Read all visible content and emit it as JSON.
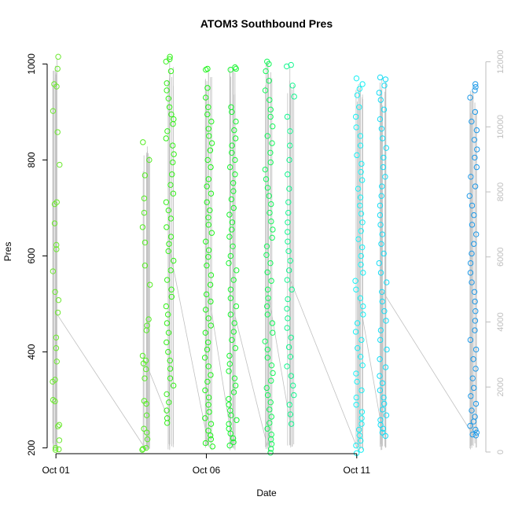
{
  "chart_data": {
    "type": "scatter",
    "title": "ATOM3 Southbound Pres",
    "xlabel": "Date",
    "ylabel": "Pres",
    "xlim": [
      "2014-09-30T17:00",
      "2014-10-15T07:00"
    ],
    "ylim": [
      188,
      1035
    ],
    "y2lim": [
      -50,
      12450
    ],
    "x_ticks": [
      {
        "value": "2014-10-01T00:00",
        "label": "Oct 01"
      },
      {
        "value": "2014-10-06T00:00",
        "label": "Oct 06"
      },
      {
        "value": "2014-10-11T00:00",
        "label": "Oct 11"
      }
    ],
    "y_ticks": [
      200,
      400,
      600,
      800,
      1000
    ],
    "y2_ticks": [
      0,
      2000,
      4000,
      6000,
      8000,
      10000,
      12000
    ],
    "grid": false,
    "legend": "none",
    "colors": {
      "axis": "#000000",
      "right_axis": "#bebebe",
      "background_line": "#c0c0c0",
      "profile_gradient": [
        "#66ee33",
        "#00ff00",
        "#00ffaa",
        "#00e8ff",
        "#1e8ce6"
      ]
    },
    "series": [
      {
        "values": [
          {
            "t": "2014-10-01T00:00",
            "pres": [
              1015,
              990,
              958,
              953,
              902,
              858,
              790,
              712,
              708,
              668,
              623,
              614,
              568,
              525,
              508,
              482,
              430,
              408,
              380,
              342,
              338,
              300,
              297,
              248,
              245,
              216,
              200,
              197,
              196
            ],
            "color": "#6be82e"
          },
          {
            "t": "2014-10-04T00:00",
            "pres": [
              837,
              800,
              768,
              720,
              690,
              660,
              628,
              580,
              540,
              468,
              455,
              445,
              392,
              382,
              376,
              364,
              345,
              298,
              292,
              268,
              240,
              232,
              218,
              200,
              198,
              196
            ],
            "color": "#55ec24"
          },
          {
            "t": "2014-10-04T19:00",
            "pres": [
              1015,
              1010,
              1005,
              985,
              960,
              945,
              928,
              910,
              895,
              885,
              875,
              860,
              845,
              830,
              812,
              795,
              770,
              748,
              730,
              712,
              695,
              678,
              660,
              640,
              625,
              610,
              590,
              570,
              550,
              530,
              515,
              495,
              478,
              460,
              440,
              420,
              400,
              382,
              365,
              345,
              330,
              312,
              295,
              278,
              262,
              252
            ],
            "color": "#32f018"
          },
          {
            "t": "2014-10-06T02:00",
            "pres": [
              990,
              988,
              950,
              930,
              910,
              895,
              880,
              865,
              850,
              835,
              820,
              800,
              785,
              760,
              745,
              730,
              712,
              695,
              680,
              665,
              648,
              630,
              612,
              598,
              580,
              560,
              540,
              520,
              505,
              488,
              470,
              455,
              440,
              420,
              405,
              388,
              370,
              352,
              338,
              320,
              305,
              290,
              275,
              262,
              250,
              236,
              226,
              218,
              210,
              203
            ],
            "color": "#1ef41a"
          },
          {
            "t": "2014-10-06T21:00",
            "pres": [
              993,
              990,
              988,
              910,
              900,
              880,
              862,
              845,
              830,
              815,
              800,
              785,
              770,
              752,
              735,
              718,
              700,
              686,
              670,
              655,
              640,
              620,
              600,
              585,
              570,
              550,
              530,
              512,
              495,
              478,
              460,
              442,
              425,
              408,
              392,
              375,
              360,
              345,
              330,
              316,
              302,
              290,
              278,
              268,
              258,
              250,
              240,
              230,
              220,
              212,
              205
            ],
            "color": "#18f530"
          },
          {
            "t": "2014-10-08T02:00",
            "pres": [
              1005,
              1000,
              985,
              965,
              945,
              925,
              905,
              890,
              870,
              850,
              835,
              815,
              795,
              780,
              760,
              742,
              725,
              708,
              690,
              672,
              655,
              638,
              620,
              602,
              585,
              566,
              548,
              530,
              512,
              495,
              478,
              460,
              440,
              422,
              405,
              388,
              372,
              356,
              340,
              325,
              310,
              295,
              280,
              265,
              252,
              240,
              228,
              218,
              208,
              198,
              190
            ],
            "color": "#14f75a"
          },
          {
            "t": "2014-10-08T19:00",
            "pres": [
              998,
              995,
              955,
              932,
              890,
              860,
              830,
              800,
              770,
              740,
              712,
              690,
              670,
              650,
              630,
              610,
              590,
              570,
              550,
              530,
              510,
              490,
              470,
              450,
              430,
              410,
              390,
              370,
              350,
              330,
              310,
              290,
              270,
              250
            ],
            "color": "#14f690"
          },
          {
            "t": "2014-10-11T02:00",
            "pres": [
              970,
              958,
              948,
              935,
              910,
              890,
              868,
              850,
              830,
              810,
              792,
              775,
              758,
              740,
              722,
              705,
              688,
              670,
              652,
              635,
              618,
              600,
              582,
              565,
              548,
              530,
              512,
              495,
              478,
              460,
              442,
              425,
              408,
              390,
              372,
              355,
              338,
              320,
              305,
              290,
              275,
              262,
              250,
              238,
              226,
              215,
              205,
              196,
              189
            ],
            "color": "#18f0f4"
          },
          {
            "t": "2014-10-11T21:00",
            "pres": [
              972,
              968,
              955,
              940,
              925,
              905,
              885,
              865,
              845,
              825,
              805,
              785,
              765,
              745,
              725,
              705,
              685,
              665,
              645,
              625,
              605,
              585,
              565,
              545,
              525,
              505,
              485,
              465,
              445,
              425,
              405,
              385,
              368,
              350,
              335,
              320,
              305,
              292,
              280,
              268,
              258,
              248,
              240,
              232,
              225
            ],
            "color": "#16dcf5"
          },
          {
            "t": "2014-10-14T21:00",
            "pres": [
              958,
              952,
              945,
              930,
              900,
              880,
              862,
              842,
              822,
              805,
              785,
              765,
              745,
              725,
              705,
              685,
              665,
              645,
              625,
              605,
              585,
              565,
              545,
              525,
              505,
              485,
              465,
              445,
              425,
              405,
              385,
              365,
              345,
              325,
              308,
              292,
              278,
              265,
              255,
              246,
              238,
              232,
              228,
              226
            ],
            "color": "#1f9ae8"
          }
        ]
      }
    ]
  }
}
